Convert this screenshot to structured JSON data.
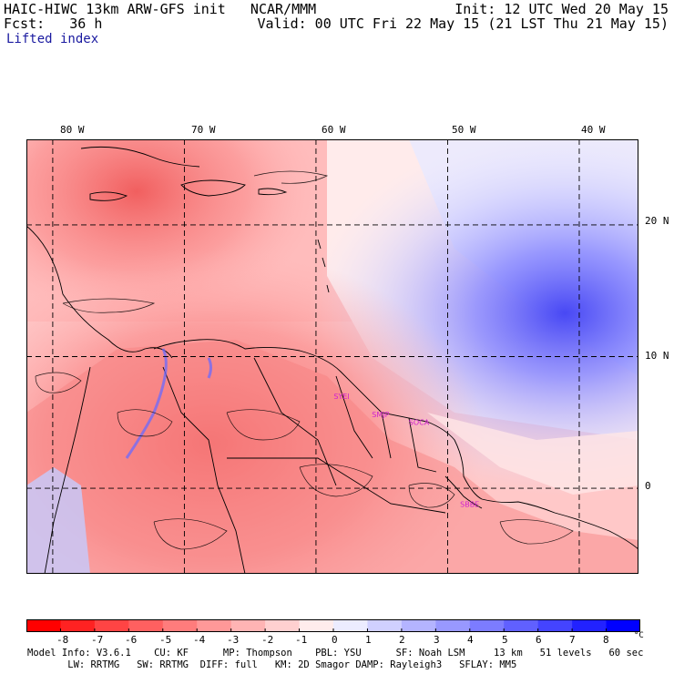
{
  "header": {
    "line1_left": "HAIC-HIWC 13km ARW-GFS init   NCAR/MMM",
    "line1_right": "Init: 12 UTC Wed 20 May 15",
    "line2_left": "Fcst:   36 h",
    "line2_right": "Valid: 00 UTC Fri 22 May 15 (21 LST Thu 21 May 15)",
    "field_name": "Lifted index"
  },
  "map": {
    "longitude_labels": [
      "80 W",
      "70 W",
      "60 W",
      "50 W",
      "40 W"
    ],
    "latitude_labels": [
      "20 N",
      "10 N",
      "0"
    ],
    "longitude_values": [
      -80,
      -70,
      -60,
      -50,
      -40
    ],
    "latitude_values": [
      20,
      10,
      0
    ],
    "lon_range": [
      -82,
      -35.5
    ],
    "lat_range": [
      -6.5,
      26.5
    ],
    "stations": [
      {
        "code": "SYEI",
        "lon": -58.1,
        "lat": 6.8
      },
      {
        "code": "SMJP",
        "lon": -55.2,
        "lat": 5.4
      },
      {
        "code": "SOCA",
        "lon": -52.4,
        "lat": 4.8
      },
      {
        "code": "SBBE",
        "lon": -48.5,
        "lat": -1.4
      }
    ],
    "station_color": "#d020d0"
  },
  "colorbar": {
    "tick_labels": [
      "-8",
      "-7",
      "-6",
      "-5",
      "-4",
      "-3",
      "-2",
      "-1",
      "0",
      "1",
      "2",
      "3",
      "4",
      "5",
      "6",
      "7",
      "8"
    ],
    "unit": "°C",
    "colors": [
      "#ff0000",
      "#ff2222",
      "#ff4444",
      "#ff6060",
      "#ff7c7c",
      "#ff9898",
      "#ffb4b4",
      "#ffd0d0",
      "#ffecec",
      "#ececff",
      "#d0d0ff",
      "#b4b4ff",
      "#9898ff",
      "#7c7cff",
      "#6060ff",
      "#4444ff",
      "#2222ff",
      "#0000ff"
    ]
  },
  "footer": {
    "line1": "Model Info: V3.6.1    CU: KF      MP: Thompson    PBL: YSU      SF: Noah LSM     13 km   51 levels   60 sec",
    "line2": "       LW: RRTMG   SW: RRTMG  DIFF: full   KM: 2D Smagor DAMP: Rayleigh3   SFLAY: MM5"
  }
}
